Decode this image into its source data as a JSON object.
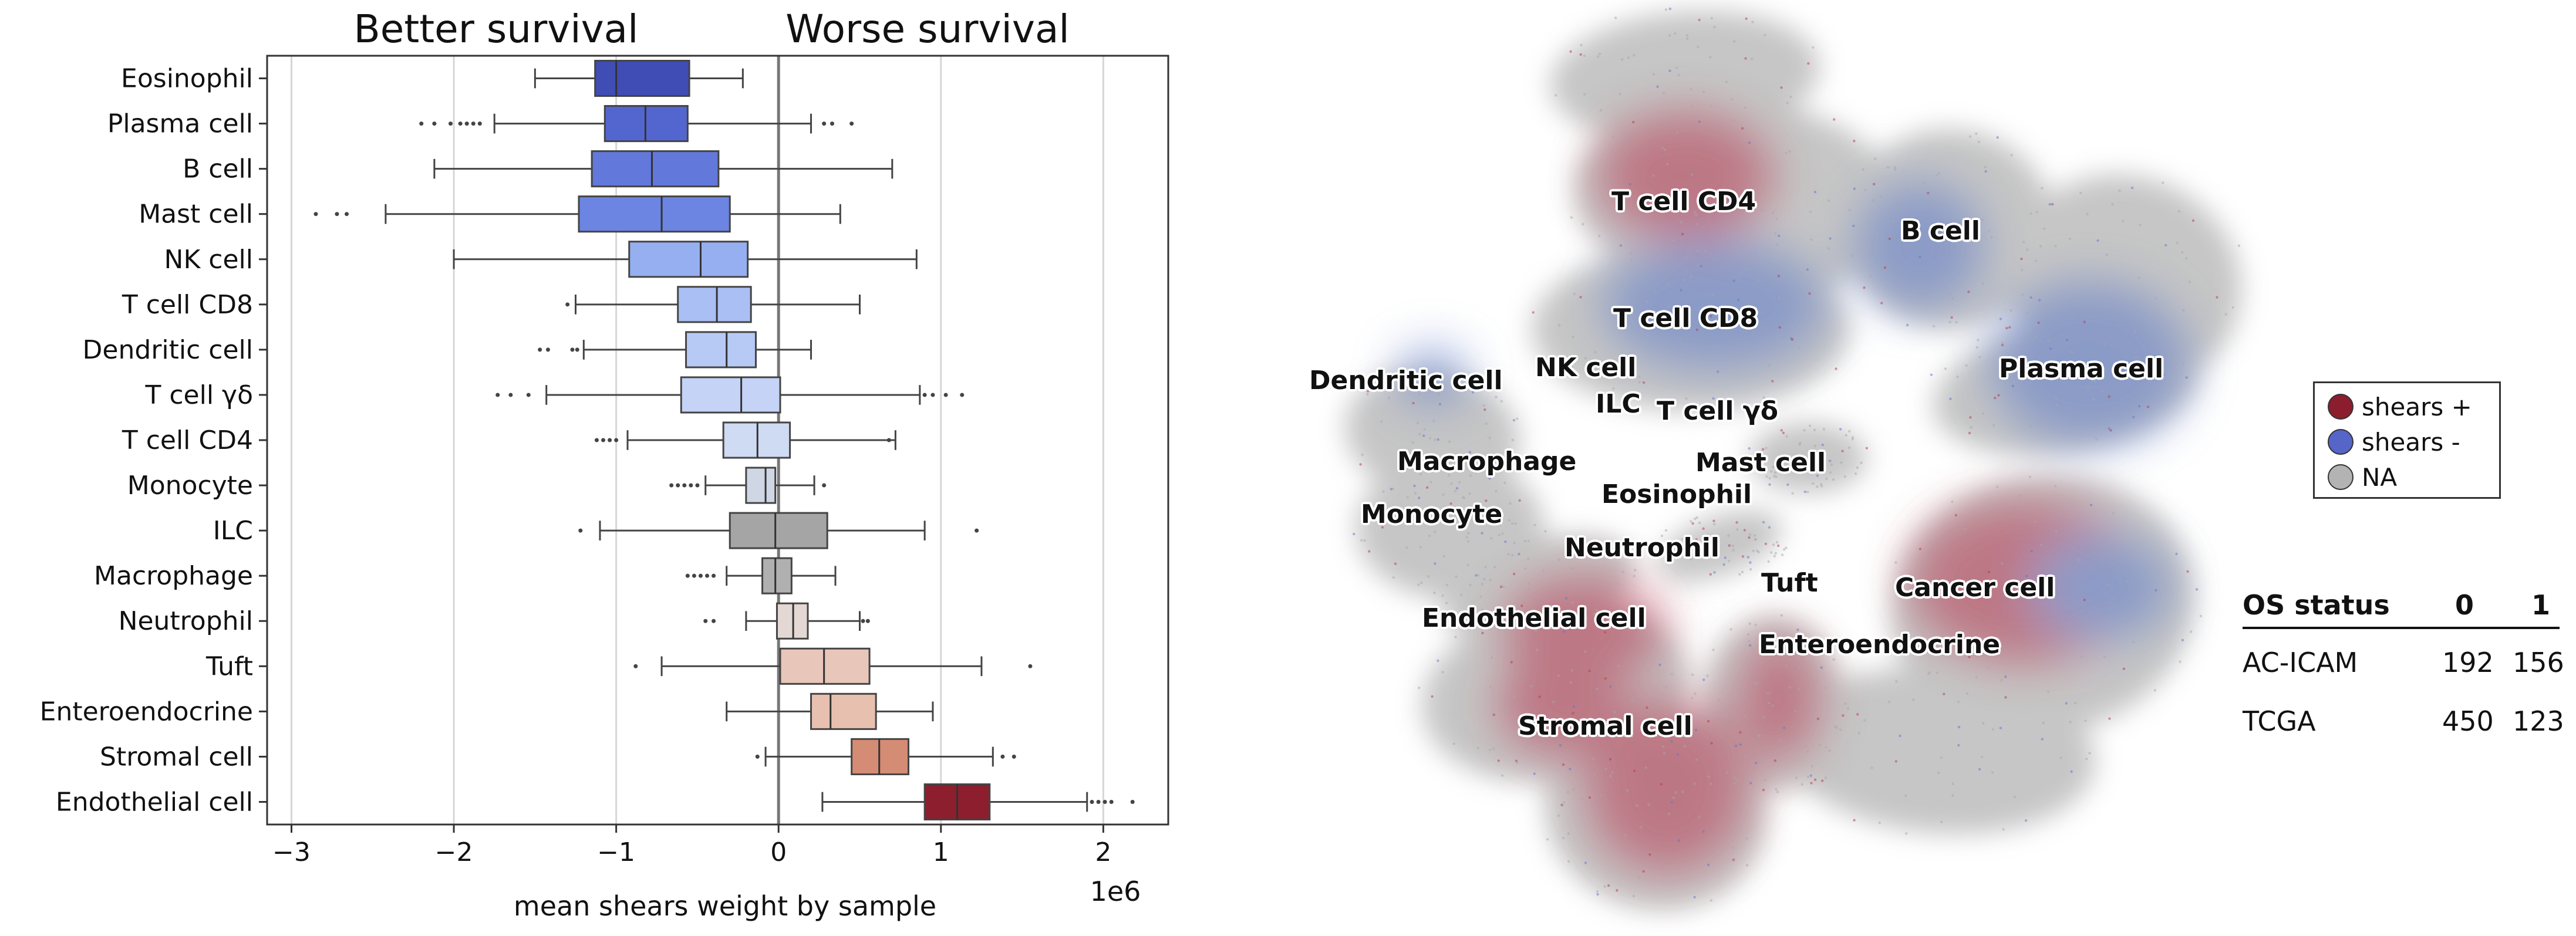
{
  "chart_data": {
    "type": "box",
    "header_left": "Better survival",
    "header_right": "Worse survival",
    "xlabel": "mean shears weight by sample",
    "x_scale_note": "1e6",
    "xlim": [
      -3.15,
      2.4
    ],
    "xticks": [
      -3,
      -2,
      -1,
      0,
      1,
      2
    ],
    "xtick_labels": [
      "−3",
      "−2",
      "−1",
      "0",
      "1",
      "2"
    ],
    "grid": "vertical",
    "categories": [
      "Eosinophil",
      "Plasma cell",
      "B cell",
      "Mast cell",
      "NK cell",
      "T cell CD8",
      "Dendritic cell",
      "T cell γδ",
      "T cell CD4",
      "Monocyte",
      "ILC",
      "Macrophage",
      "Neutrophil",
      "Tuft",
      "Enteroendocrine",
      "Stromal cell",
      "Endothelial cell"
    ],
    "boxes": [
      {
        "q1": -1.13,
        "median": -1.0,
        "q3": -0.55,
        "wlo": -1.5,
        "whi": -0.22,
        "fliers": [],
        "color": "#3f4db5"
      },
      {
        "q1": -1.07,
        "median": -0.82,
        "q3": -0.56,
        "wlo": -1.75,
        "whi": 0.2,
        "fliers": [
          -2.2,
          -2.12,
          -2.02,
          -1.96,
          -1.92,
          -1.88,
          -1.84,
          0.28,
          0.33,
          0.45
        ],
        "color": "#5366cf"
      },
      {
        "q1": -1.15,
        "median": -0.78,
        "q3": -0.37,
        "wlo": -2.12,
        "whi": 0.7,
        "fliers": [],
        "color": "#6278db"
      },
      {
        "q1": -1.23,
        "median": -0.72,
        "q3": -0.3,
        "wlo": -2.42,
        "whi": 0.38,
        "fliers": [
          -2.85,
          -2.72,
          -2.66
        ],
        "color": "#6c85e2"
      },
      {
        "q1": -0.92,
        "median": -0.48,
        "q3": -0.19,
        "wlo": -2.0,
        "whi": 0.85,
        "fliers": [],
        "color": "#96aff0"
      },
      {
        "q1": -0.62,
        "median": -0.38,
        "q3": -0.17,
        "wlo": -1.25,
        "whi": 0.5,
        "fliers": [
          -1.3
        ],
        "color": "#aabff4"
      },
      {
        "q1": -0.57,
        "median": -0.32,
        "q3": -0.14,
        "wlo": -1.2,
        "whi": 0.2,
        "fliers": [
          -1.47,
          -1.42,
          -1.27,
          -1.24
        ],
        "color": "#b7c9f5"
      },
      {
        "q1": -0.6,
        "median": -0.23,
        "q3": 0.01,
        "wlo": -1.43,
        "whi": 0.87,
        "fliers": [
          -1.73,
          -1.65,
          -1.54,
          0.9,
          0.95,
          1.03,
          1.13
        ],
        "color": "#c4d3f6"
      },
      {
        "q1": -0.34,
        "median": -0.13,
        "q3": 0.07,
        "wlo": -0.93,
        "whi": 0.72,
        "fliers": [
          -1.12,
          -1.08,
          -1.04,
          -1.0,
          0.68
        ],
        "color": "#cfdaf3"
      },
      {
        "q1": -0.2,
        "median": -0.08,
        "q3": -0.02,
        "wlo": -0.45,
        "whi": 0.22,
        "fliers": [
          -0.66,
          -0.62,
          -0.58,
          -0.54,
          -0.5,
          0.28
        ],
        "color": "#cfd6e4"
      },
      {
        "q1": -0.3,
        "median": -0.02,
        "q3": 0.3,
        "wlo": -1.1,
        "whi": 0.9,
        "fliers": [
          -1.22,
          1.22
        ],
        "color": "#a5a5a5"
      },
      {
        "q1": -0.1,
        "median": -0.02,
        "q3": 0.08,
        "wlo": -0.32,
        "whi": 0.35,
        "fliers": [
          -0.56,
          -0.52,
          -0.48,
          -0.44,
          -0.4
        ],
        "color": "#b0b0b0"
      },
      {
        "q1": -0.01,
        "median": 0.09,
        "q3": 0.18,
        "wlo": -0.2,
        "whi": 0.5,
        "fliers": [
          -0.45,
          -0.4,
          0.52,
          0.55
        ],
        "color": "#e4d8d4"
      },
      {
        "q1": 0.01,
        "median": 0.28,
        "q3": 0.56,
        "wlo": -0.72,
        "whi": 1.25,
        "fliers": [
          -0.88,
          1.55
        ],
        "color": "#e8c6ba"
      },
      {
        "q1": 0.2,
        "median": 0.32,
        "q3": 0.6,
        "wlo": -0.32,
        "whi": 0.95,
        "fliers": [],
        "color": "#e8c0b0"
      },
      {
        "q1": 0.45,
        "median": 0.62,
        "q3": 0.8,
        "wlo": -0.08,
        "whi": 1.32,
        "fliers": [
          -0.13,
          1.38,
          1.45
        ],
        "color": "#d58c75"
      },
      {
        "q1": 0.9,
        "median": 1.1,
        "q3": 1.3,
        "wlo": 0.27,
        "whi": 1.9,
        "fliers": [
          1.93,
          1.97,
          2.01,
          2.05,
          2.18
        ],
        "color": "#8c1e2e"
      }
    ]
  },
  "umap": {
    "labels": [
      "T cell CD4",
      "B cell",
      "T cell CD8",
      "Plasma cell",
      "Dendritic cell",
      "NK cell",
      "ILC",
      "T cell γδ",
      "Mast cell",
      "Macrophage",
      "Eosinophil",
      "Monocyte",
      "Neutrophil",
      "Tuft",
      "Cancer cell",
      "Endothelial cell",
      "Enteroendocrine",
      "Stromal cell"
    ],
    "colors": {
      "plus": "#b5394f",
      "minus": "#5b78c8",
      "na": "#bcbcbc"
    }
  },
  "legend": {
    "items": [
      {
        "label": "shears +",
        "color": "#8b1d2f"
      },
      {
        "label": "shears -",
        "color": "#5565c8"
      },
      {
        "label": "NA",
        "color": "#b3b3b3"
      }
    ]
  },
  "os_table": {
    "header": [
      "OS status",
      "0",
      "1"
    ],
    "rows": [
      [
        "AC-ICAM",
        "192",
        "156"
      ],
      [
        "TCGA",
        "450",
        "123"
      ]
    ]
  }
}
